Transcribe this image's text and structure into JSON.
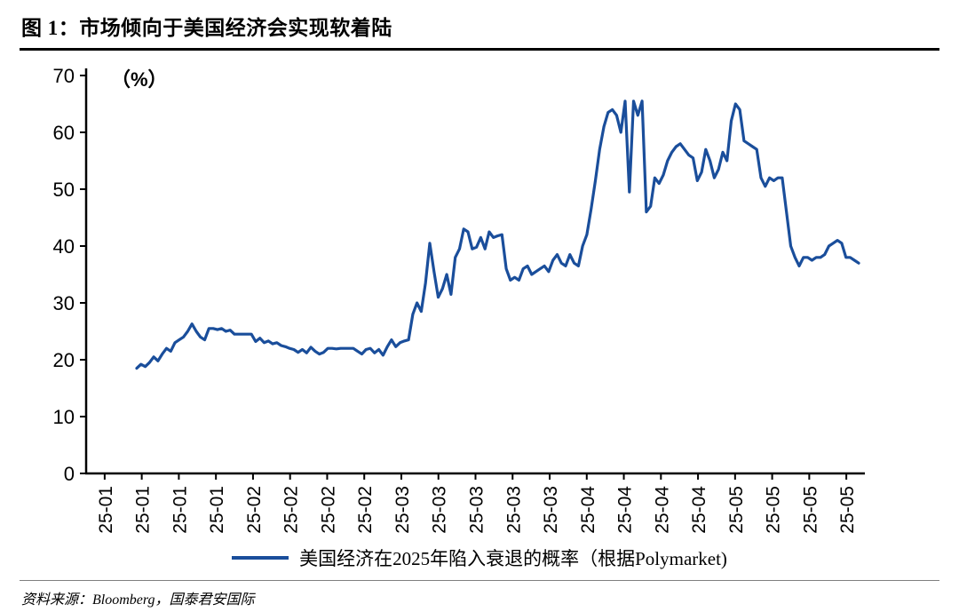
{
  "footer": {
    "source": "资料来源：Bloomberg，国泰君安国际"
  },
  "chart_data": {
    "type": "line",
    "title": "图 1：市场倾向于美国经济会实现软着陆",
    "unit_label": "（%）",
    "ylim": [
      0,
      70
    ],
    "y_ticks": [
      0,
      10,
      20,
      30,
      40,
      50,
      60,
      70
    ],
    "x_tick_labels": [
      "25-01",
      "25-01",
      "25-01",
      "25-01",
      "25-02",
      "25-02",
      "25-02",
      "25-02",
      "25-03",
      "25-03",
      "25-03",
      "25-03",
      "25-03",
      "25-04",
      "25-04",
      "25-04",
      "25-04",
      "25-05",
      "25-05",
      "25-05",
      "25-05"
    ],
    "grid": false,
    "legend_position": "bottom",
    "line_color": "#1a4e9b",
    "series": [
      {
        "name": "美国经济在2025年陷入衰退的概率（根据Polymarket)",
        "color": "#1a4e9b",
        "values": [
          18.5,
          19.2,
          18.8,
          19.5,
          20.5,
          19.8,
          21.0,
          22.0,
          21.5,
          23.0,
          23.5,
          24.0,
          25.0,
          26.3,
          25.0,
          24.0,
          23.5,
          25.5,
          25.5,
          25.3,
          25.5,
          25.0,
          25.2,
          24.5,
          24.5,
          24.5,
          24.5,
          24.5,
          23.2,
          23.8,
          23.0,
          23.3,
          22.8,
          23.0,
          22.5,
          22.3,
          22.0,
          21.8,
          21.3,
          21.8,
          21.2,
          22.2,
          21.5,
          21.0,
          21.3,
          22.0,
          22.0,
          21.9,
          22.0,
          22.0,
          22.0,
          22.0,
          21.5,
          21.0,
          21.8,
          22.0,
          21.2,
          21.8,
          20.8,
          22.3,
          23.5,
          22.3,
          23.0,
          23.3,
          23.5,
          28.0,
          30.0,
          28.5,
          33.5,
          40.5,
          35.5,
          31.0,
          32.5,
          35.0,
          31.5,
          38.0,
          39.5,
          43.0,
          42.5,
          39.5,
          39.8,
          41.5,
          39.5,
          42.5,
          41.5,
          41.8,
          42.0,
          36.0,
          34.0,
          34.5,
          34.0,
          36.0,
          36.5,
          35.0,
          35.5,
          36.0,
          36.5,
          35.5,
          37.5,
          38.5,
          37.0,
          36.5,
          38.5,
          37.0,
          36.5,
          40.0,
          42.0,
          46.5,
          51.5,
          57.0,
          61.0,
          63.5,
          64.0,
          63.0,
          60.0,
          65.5,
          49.5,
          65.5,
          63.0,
          65.5,
          46.0,
          47.0,
          52.0,
          51.0,
          52.5,
          55.0,
          56.5,
          57.5,
          58.0,
          57.0,
          56.0,
          55.5,
          51.5,
          53.0,
          57.0,
          55.0,
          52.0,
          53.5,
          56.5,
          55.0,
          62.0,
          65.0,
          64.0,
          58.5,
          58.0,
          57.5,
          57.0,
          52.0,
          50.5,
          52.0,
          51.5,
          52.0,
          52.0,
          46.0,
          40.0,
          38.0,
          36.5,
          38.0,
          38.0,
          37.5,
          38.0,
          38.0,
          38.5,
          40.0,
          40.5,
          41.0,
          40.5,
          38.0,
          38.0,
          37.5,
          37.0
        ]
      }
    ]
  }
}
